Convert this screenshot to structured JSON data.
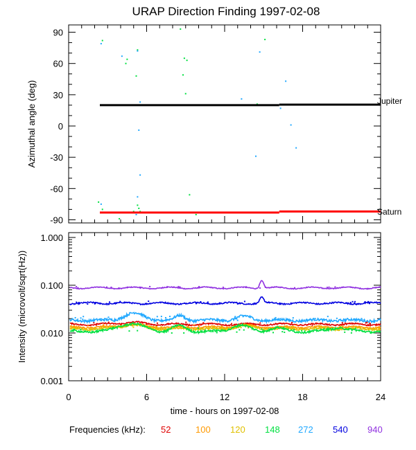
{
  "chart_data": [
    {
      "type": "scatter",
      "title": "URAP Direction Finding  1997-02-08",
      "ylabel": "Azimuthal angle (deg)",
      "xlim": [
        0,
        24
      ],
      "ylim": [
        -93,
        97
      ],
      "yticks": [
        90,
        60,
        30,
        0,
        -30,
        -60,
        -90
      ],
      "yticks_minor": [
        80,
        70,
        50,
        40,
        20,
        10,
        -10,
        -20,
        -40,
        -50,
        -70,
        -80
      ],
      "xticks": [
        0,
        6,
        12,
        18,
        24
      ],
      "grid": false,
      "reference_lines": [
        {
          "name": "Jupiter",
          "color": "#000000",
          "segments": [
            [
              2.4,
              20,
              16.2,
              20
            ],
            [
              16.2,
              20.5,
              24,
              20.5
            ]
          ]
        },
        {
          "name": "Saturn",
          "color": "#ff0000",
          "segments": [
            [
              2.4,
              -83,
              16.2,
              -83
            ],
            [
              16.2,
              -82,
              24,
              -82
            ]
          ]
        }
      ],
      "series": [
        {
          "color": "#00e040",
          "points": [
            [
              2.6,
              82
            ],
            [
              4.4,
              60
            ],
            [
              4.5,
              64
            ],
            [
              5.3,
              73
            ],
            [
              5.2,
              48
            ],
            [
              8.6,
              93
            ],
            [
              8.9,
              65
            ],
            [
              9.1,
              63
            ],
            [
              8.8,
              49
            ],
            [
              9.0,
              31
            ],
            [
              14.1,
              20
            ],
            [
              15.1,
              83
            ],
            [
              14.5,
              21
            ],
            [
              2.3,
              -73
            ],
            [
              2.6,
              -80
            ],
            [
              5.3,
              -76
            ],
            [
              5.4,
              -79
            ],
            [
              5.5,
              -82
            ],
            [
              3.9,
              -89
            ],
            [
              9.3,
              -66
            ],
            [
              9.8,
              -85
            ],
            [
              5.0,
              -82
            ]
          ]
        },
        {
          "color": "#20a8ff",
          "points": [
            [
              2.5,
              79
            ],
            [
              4.1,
              67
            ],
            [
              5.3,
              72
            ],
            [
              5.5,
              23
            ],
            [
              5.4,
              -4
            ],
            [
              13.3,
              26
            ],
            [
              14.7,
              71
            ],
            [
              16.3,
              17
            ],
            [
              16.7,
              43
            ],
            [
              17.1,
              1
            ],
            [
              17.5,
              -21
            ],
            [
              14.4,
              -29
            ],
            [
              5.5,
              -47
            ],
            [
              5.3,
              -68
            ],
            [
              5.2,
              -85
            ],
            [
              2.5,
              -75
            ]
          ]
        }
      ]
    },
    {
      "type": "line",
      "ylabel": "Intensity (microvolt/sqrt(Hz))",
      "xlabel": "time - hours on 1997-02-08",
      "xlim": [
        0,
        24
      ],
      "ylim_log": [
        0.001,
        1.0
      ],
      "yscale": "log",
      "yticks": [
        1.0,
        0.1,
        0.01,
        0.001
      ],
      "yticklabels": [
        "1.000",
        "0.100",
        "0.010",
        "0.001"
      ],
      "xticks": [
        0,
        6,
        12,
        18,
        24
      ],
      "xticklabels": [
        "0",
        "6",
        "12",
        "18",
        "24"
      ],
      "x_start": 0.1,
      "grid": false,
      "legend": {
        "title": "Frequencies (kHz):",
        "placement": "bottom",
        "items": [
          {
            "label": "52",
            "color": "#e00000"
          },
          {
            "label": "100",
            "color": "#ff9900"
          },
          {
            "label": "120",
            "color": "#e0c000"
          },
          {
            "label": "148",
            "color": "#00e040"
          },
          {
            "label": "272",
            "color": "#20a8ff"
          },
          {
            "label": "540",
            "color": "#0000e0"
          },
          {
            "label": "940",
            "color": "#9030e0"
          }
        ]
      },
      "series": [
        {
          "name": "940",
          "color": "#9030e0",
          "base": 0.088,
          "noise": 0.04,
          "bumps": [
            [
              14.85,
              0.2,
              1.45
            ]
          ]
        },
        {
          "name": "540",
          "color": "#0000e0",
          "base": 0.042,
          "noise": 0.06,
          "bumps": [
            [
              14.85,
              0.2,
              1.3
            ]
          ]
        },
        {
          "name": "272",
          "color": "#20a8ff",
          "base": 0.0185,
          "noise": 0.12,
          "bumps": [
            [
              5.0,
              1.0,
              1.4
            ],
            [
              8.6,
              0.5,
              1.25
            ],
            [
              13.5,
              0.8,
              1.2
            ]
          ]
        },
        {
          "name": "52",
          "color": "#e00000",
          "base": 0.0152,
          "noise": 0.06,
          "bumps": [
            [
              4.8,
              1.2,
              1.1
            ]
          ]
        },
        {
          "name": "100",
          "color": "#ff9900",
          "base": 0.0132,
          "noise": 0.07,
          "bumps": [
            [
              4.8,
              1.2,
              1.15
            ],
            [
              13.5,
              0.9,
              1.1
            ]
          ]
        },
        {
          "name": "120",
          "color": "#e0c000",
          "base": 0.0122,
          "noise": 0.08,
          "bumps": [
            [
              4.8,
              1.2,
              1.2
            ],
            [
              13.5,
              0.9,
              1.15
            ]
          ]
        },
        {
          "name": "148",
          "color": "#00e040",
          "base": 0.0108,
          "noise": 0.1,
          "bumps": [
            [
              4.8,
              1.3,
              1.45
            ],
            [
              8.5,
              0.7,
              1.3
            ],
            [
              13.2,
              0.9,
              1.35
            ],
            [
              16.0,
              0.7,
              1.2
            ],
            [
              20.8,
              0.9,
              1.2
            ]
          ]
        }
      ]
    }
  ],
  "labels": {
    "jupiter": "Jupiter",
    "saturn": "Saturn"
  }
}
